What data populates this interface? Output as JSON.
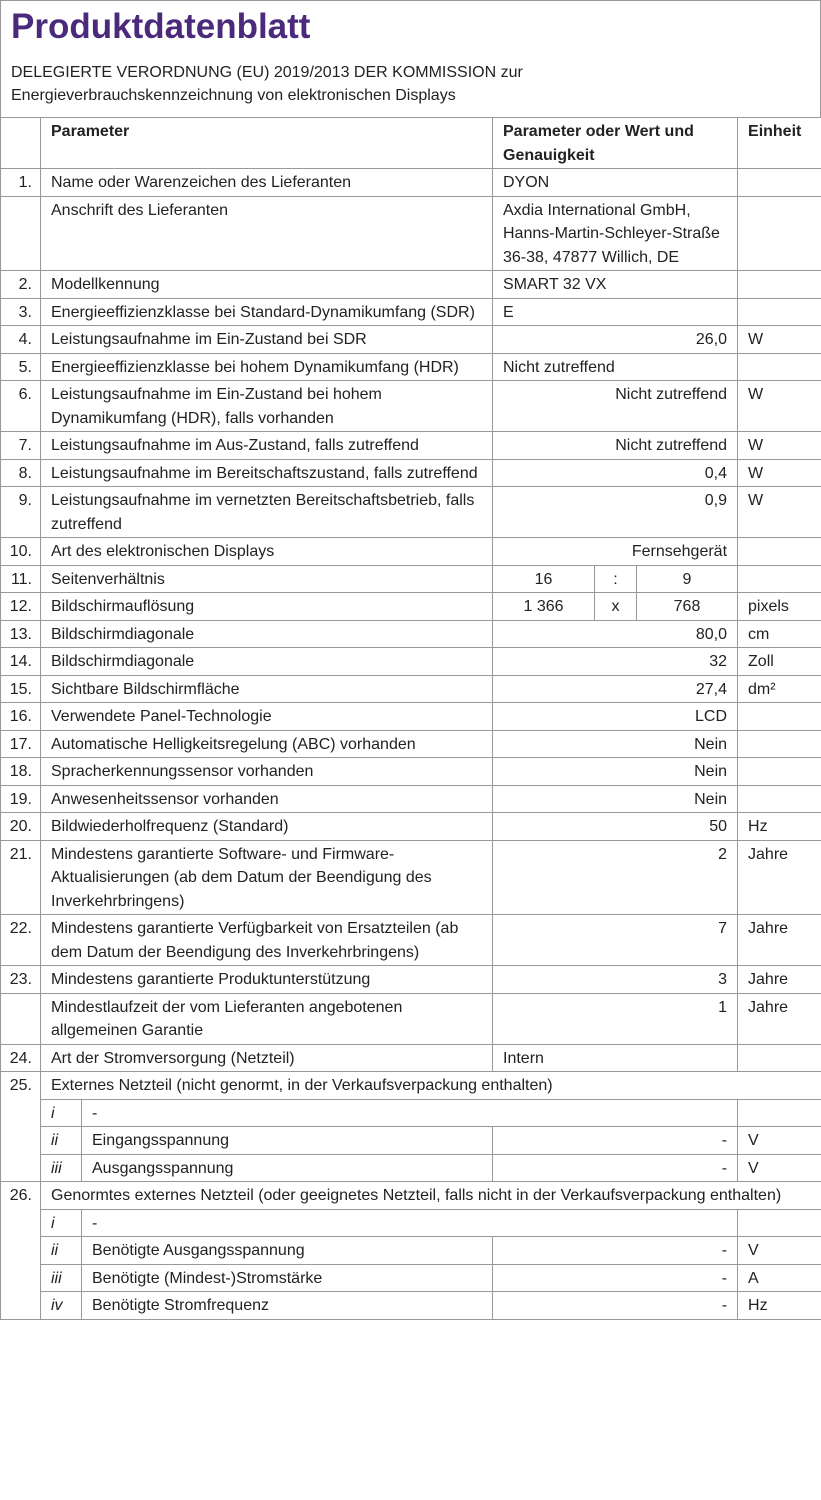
{
  "header": {
    "title": "Produktdatenblatt",
    "subtitle": "DELEGIERTE VERORDNUNG (EU) 2019/2013 DER KOMMISSION zur Energieverbrauchskennzeichnung von elektronischen Displays"
  },
  "table": {
    "columns": [
      "Parameter",
      "Parameter oder Wert und Genauigkeit",
      "Einheit"
    ],
    "rows": [
      {
        "num": "1.",
        "parameter": "Name oder Warenzeichen des Lieferanten",
        "value": "DYON"
      },
      {
        "parameter": "Anschrift des Lieferanten",
        "value": "Axdia International GmbH, Hanns-Martin-Schleyer-Straße 36-38, 47877 Willich, DE"
      },
      {
        "num": "2.",
        "parameter": "Modellkennung",
        "value": "SMART 32 VX"
      },
      {
        "num": "3.",
        "parameter": "Energieeffizienzklasse bei Standard-Dynamikumfang (SDR)",
        "value": "E"
      },
      {
        "num": "4.",
        "parameter": "Leistungsaufnahme im Ein-Zustand bei SDR",
        "value": "26,0",
        "unit": "W"
      },
      {
        "num": "5.",
        "parameter": "Energieeffizienzklasse bei hohem Dynamikumfang (HDR)",
        "value": "Nicht zutreffend"
      },
      {
        "num": "6.",
        "parameter": "Leistungsaufnahme im Ein-Zustand bei hohem Dynamikumfang (HDR), falls vorhanden",
        "value": "Nicht zutreffend",
        "unit": "W"
      },
      {
        "num": "7.",
        "parameter": "Leistungsaufnahme im Aus-Zustand, falls zutreffend",
        "value": "Nicht zutreffend",
        "unit": "W"
      },
      {
        "num": "8.",
        "parameter": "Leistungsaufnahme im Bereitschaftszustand, falls zutreffend",
        "value": "0,4",
        "unit": "W"
      },
      {
        "num": "9.",
        "parameter": "Leistungsaufnahme im vernetzten Bereitschaftsbetrieb, falls zutreffend",
        "value": "0,9",
        "unit": "W"
      },
      {
        "num": "10.",
        "parameter": "Art des elektronischen Displays",
        "value": "Fernsehgerät"
      },
      {
        "num": "11.",
        "parameter": "Seitenverhältnis",
        "value": [
          "16",
          ":",
          "9"
        ]
      },
      {
        "num": "12.",
        "parameter": "Bildschirmauflösung",
        "value": [
          "1 366",
          "x",
          "768"
        ],
        "unit": "pixels"
      },
      {
        "num": "13.",
        "parameter": "Bildschirmdiagonale",
        "value": "80,0",
        "unit": "cm"
      },
      {
        "num": "14.",
        "parameter": "Bildschirmdiagonale",
        "value": "32",
        "unit": "Zoll"
      },
      {
        "num": "15.",
        "parameter": "Sichtbare Bildschirmfläche",
        "value": "27,4",
        "unit": "dm²"
      },
      {
        "num": "16.",
        "parameter": "Verwendete Panel-Technologie",
        "value": "LCD"
      },
      {
        "num": "17.",
        "parameter": "Automatische Helligkeitsregelung (ABC) vorhanden",
        "value": "Nein"
      },
      {
        "num": "18.",
        "parameter": "Spracherkennungssensor vorhanden",
        "value": "Nein"
      },
      {
        "num": "19.",
        "parameter": "Anwesenheitssensor vorhanden",
        "value": "Nein"
      },
      {
        "num": "20.",
        "parameter": "Bildwiederholfrequenz (Standard)",
        "value": "50",
        "unit": "Hz"
      },
      {
        "num": "21.",
        "parameter": "Mindestens garantierte Software- und Firmware-Aktualisierungen (ab dem Datum der Beendigung des Inverkehrbringens)",
        "value": "2",
        "unit": "Jahre"
      },
      {
        "num": "22.",
        "parameter": "Mindestens garantierte Verfügbarkeit von Ersatzteilen (ab dem Datum der Beendigung des Inverkehrbringens)",
        "value": "7",
        "unit": "Jahre"
      },
      {
        "num": "23.",
        "parameter": "Mindestens garantierte Produktunterstützung",
        "value": "3",
        "unit": "Jahre"
      },
      {
        "parameter": "Mindestlaufzeit der vom Lieferanten angebotenen allgemeinen Garantie",
        "value": "1",
        "unit": "Jahre"
      },
      {
        "num": "24.",
        "parameter": "Art der Stromversorgung (Netzteil)",
        "value": "Intern"
      },
      {
        "num": "25.",
        "parameter": "Externes Netzteil (nicht genormt, in der Verkaufsverpackung enthalten)",
        "subrows": [
          {
            "index": "i",
            "label": "-"
          },
          {
            "index": "ii",
            "label": "Eingangsspannung",
            "value": "-",
            "unit": "V"
          },
          {
            "index": "iii",
            "label": "Ausgangsspannung",
            "value": "-",
            "unit": "V"
          }
        ]
      },
      {
        "num": "26.",
        "parameter": "Genormtes externes Netzteil (oder geeignetes Netzteil, falls nicht in der Verkaufsverpackung enthalten)",
        "subrows": [
          {
            "index": "i",
            "label": "-"
          },
          {
            "index": "ii",
            "label": "Benötigte Ausgangsspannung",
            "value": "-",
            "unit": "V"
          },
          {
            "index": "iii",
            "label": "Benötigte (Mindest-)Stromstärke",
            "value": "-",
            "unit": "A"
          },
          {
            "index": "iv",
            "label": "Benötigte Stromfrequenz",
            "value": "-",
            "unit": "Hz"
          }
        ]
      }
    ]
  }
}
